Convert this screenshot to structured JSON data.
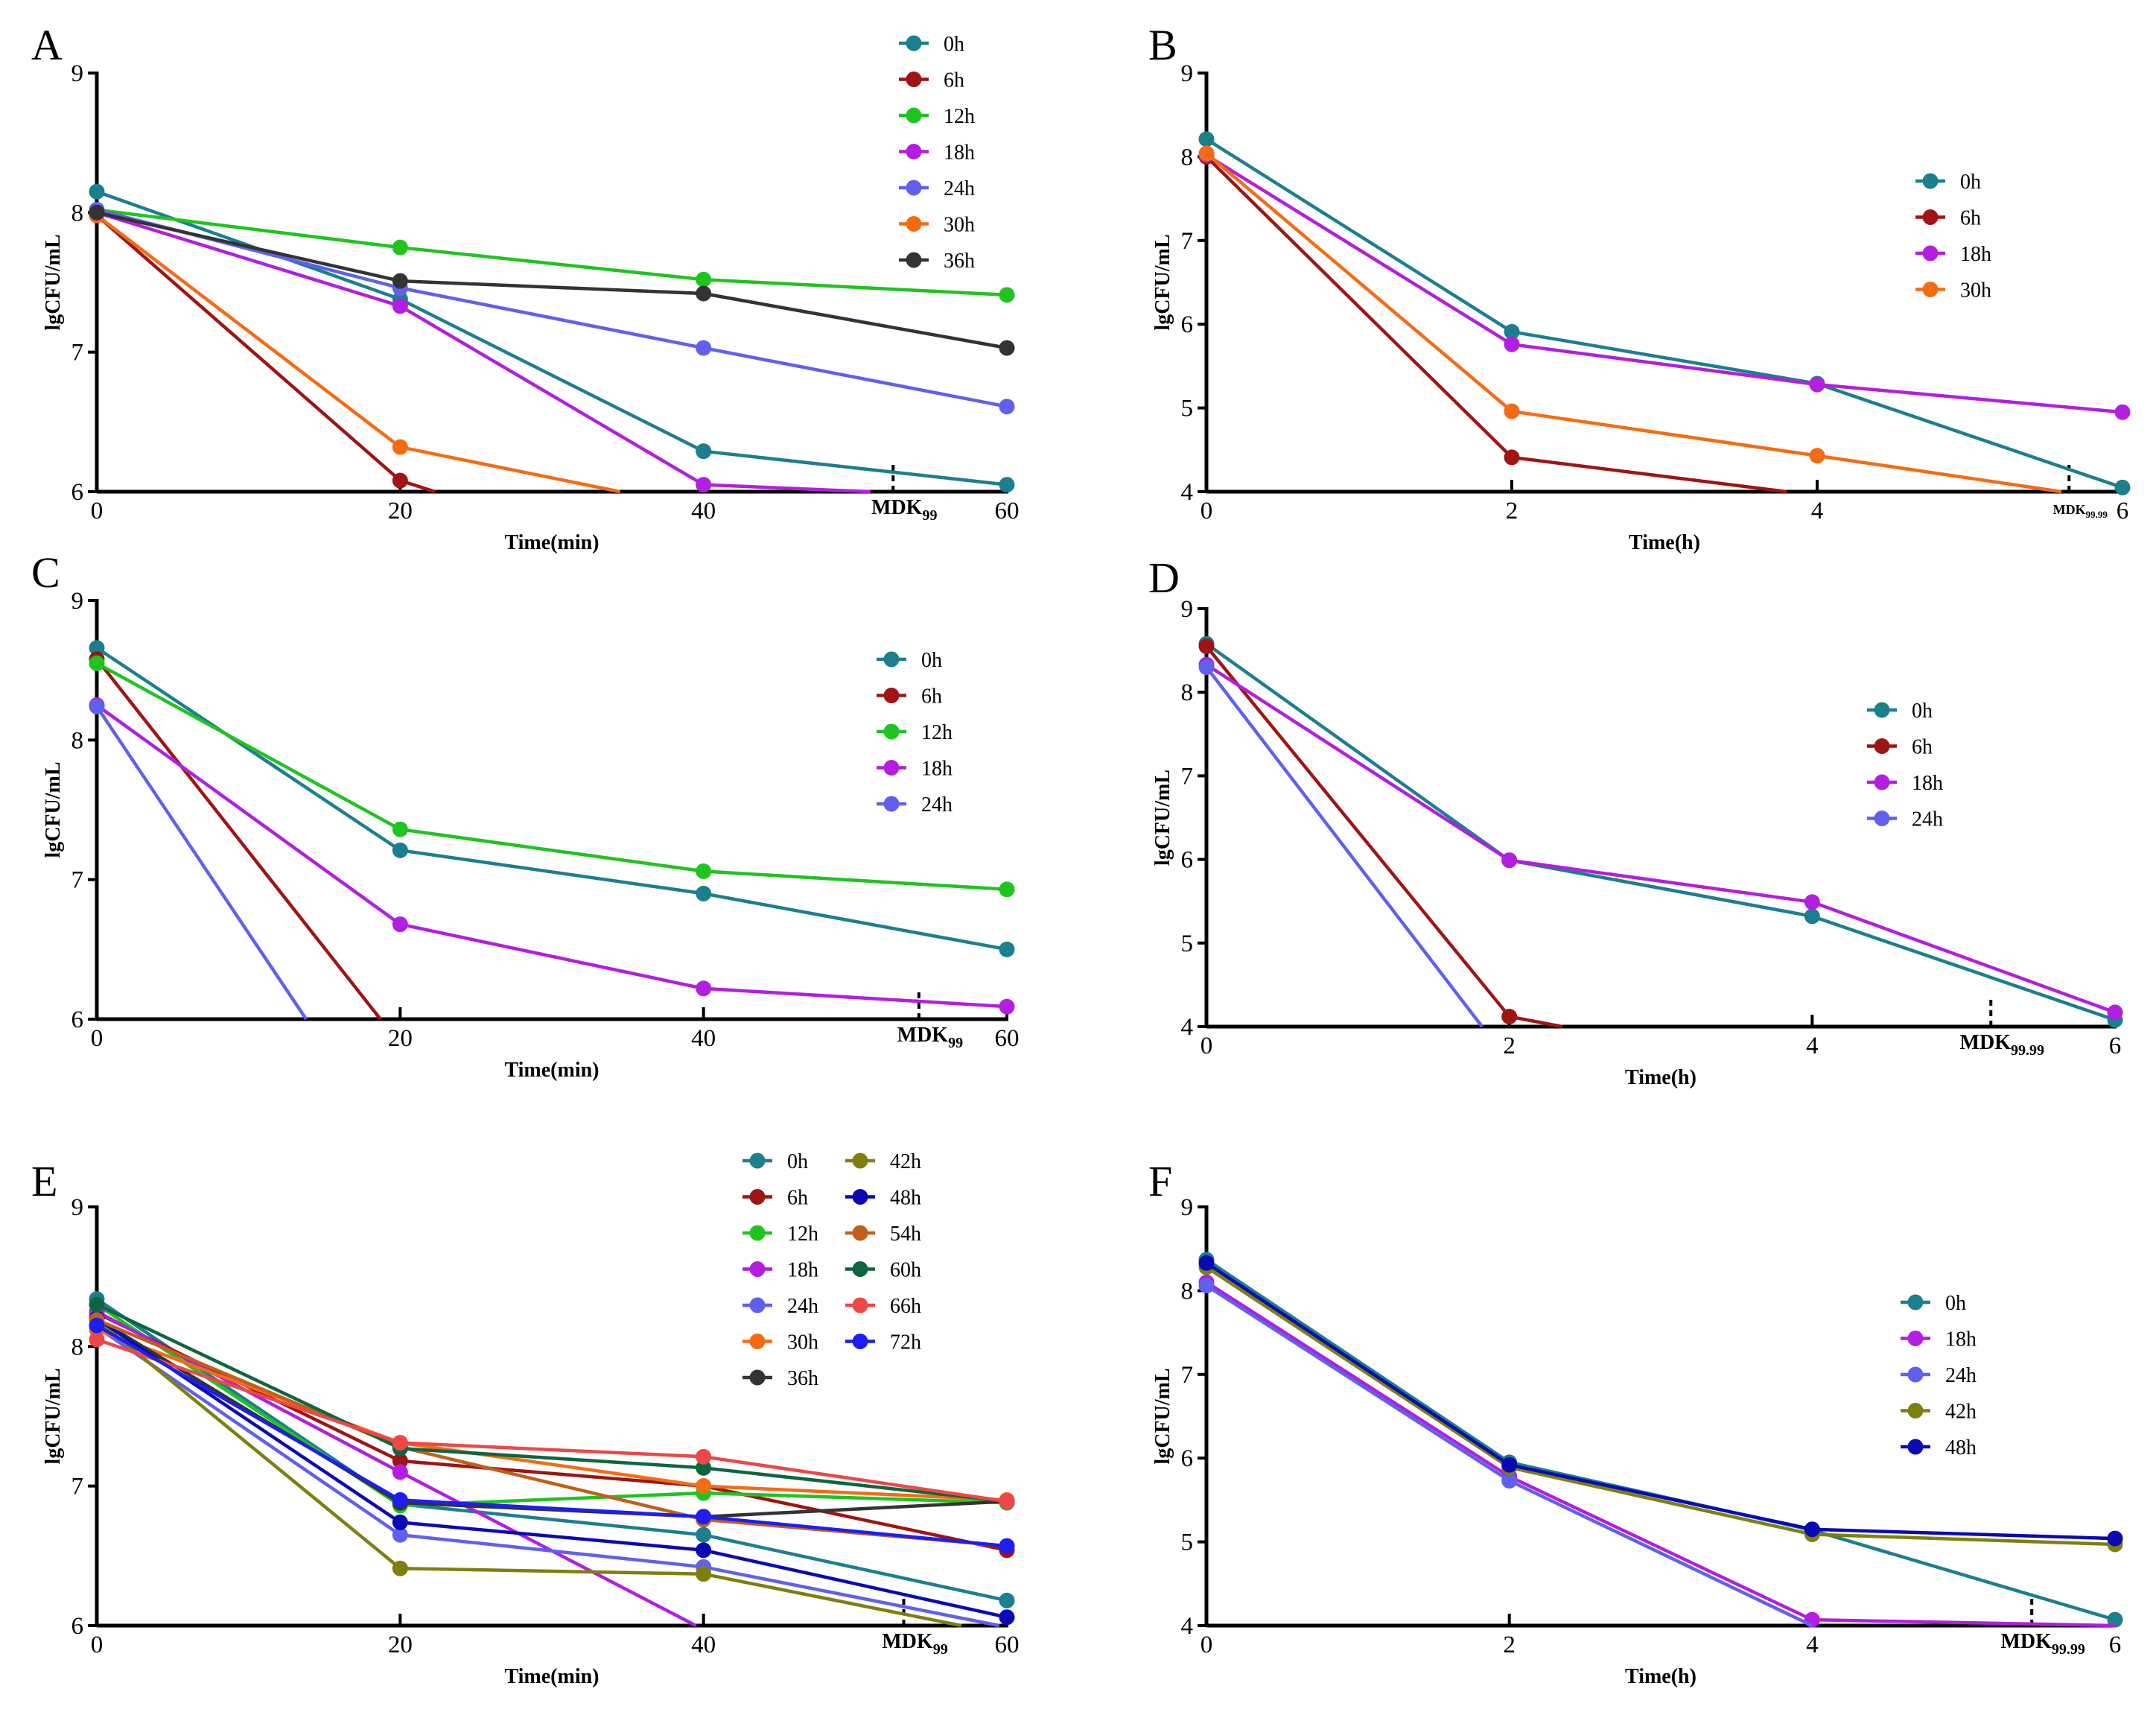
{
  "colors": {
    "0h": "#1b7f8e",
    "6h": "#a01414",
    "12h": "#1fc41f",
    "18h": "#b31ee0",
    "24h": "#6060ee",
    "30h": "#f56b14",
    "36h": "#333333",
    "42h": "#7f7f10",
    "48h": "#0a0ab5",
    "54h": "#c0601a",
    "60h": "#0e6640",
    "66h": "#ee4747",
    "72h": "#1e1ef0"
  },
  "chart_data": [
    {
      "panel": "A",
      "type": "line",
      "xlabel": "Time(min)",
      "ylabel": "lgCFU/mL",
      "xlim": [
        0,
        60
      ],
      "ylim": [
        6,
        9
      ],
      "xticks": [
        "0",
        "20",
        "40",
        "60"
      ],
      "yticks": [
        "6",
        "7",
        "8",
        "9"
      ],
      "mdk": {
        "label": "MDK",
        "sub": "99",
        "x": 52.5
      },
      "legend_cols": 1,
      "series": [
        {
          "name": "0h",
          "x": [
            0,
            20,
            40,
            60
          ],
          "y": [
            8.15,
            7.38,
            6.29,
            6.05
          ]
        },
        {
          "name": "6h",
          "x": [
            0,
            20,
            22.3
          ],
          "y": [
            7.98,
            6.08,
            6.0
          ]
        },
        {
          "name": "12h",
          "x": [
            0,
            20,
            40,
            60
          ],
          "y": [
            8.02,
            7.75,
            7.52,
            7.41
          ]
        },
        {
          "name": "18h",
          "x": [
            0,
            20,
            40,
            51
          ],
          "y": [
            8.0,
            7.33,
            6.05,
            6.0
          ]
        },
        {
          "name": "24h",
          "x": [
            0,
            20,
            40,
            60
          ],
          "y": [
            8.02,
            7.46,
            7.03,
            6.61
          ]
        },
        {
          "name": "30h",
          "x": [
            0,
            20,
            34.5
          ],
          "y": [
            7.98,
            6.32,
            6.0
          ]
        },
        {
          "name": "36h",
          "x": [
            0,
            20,
            40,
            60
          ],
          "y": [
            8.0,
            7.51,
            7.42,
            7.03
          ]
        }
      ],
      "markers_skip_last": {
        "6h": true,
        "18h": true,
        "30h": true
      }
    },
    {
      "panel": "B",
      "type": "line",
      "xlabel": "Time(h)",
      "ylabel": "lgCFU/mL",
      "xlim": [
        0,
        6
      ],
      "ylim": [
        4,
        9
      ],
      "xticks": [
        "0",
        "2",
        "4",
        "6"
      ],
      "yticks": [
        "4",
        "5",
        "6",
        "7",
        "8",
        "9"
      ],
      "mdk": {
        "label": "MDK",
        "sub": "99.99",
        "x": 5.65
      },
      "legend_cols": 1,
      "series": [
        {
          "name": "0h",
          "x": [
            0,
            2,
            4,
            6
          ],
          "y": [
            8.21,
            5.91,
            5.29,
            4.05
          ]
        },
        {
          "name": "6h",
          "x": [
            0,
            2,
            3.8
          ],
          "y": [
            8.0,
            4.41,
            4.0
          ]
        },
        {
          "name": "18h",
          "x": [
            0,
            2,
            4,
            6
          ],
          "y": [
            8.02,
            5.76,
            5.28,
            4.95
          ]
        },
        {
          "name": "30h",
          "x": [
            0,
            2,
            4,
            5.6
          ],
          "y": [
            8.04,
            4.96,
            4.43,
            4.0
          ]
        }
      ],
      "markers_skip_last": {
        "6h": true,
        "30h": true
      }
    },
    {
      "panel": "C",
      "type": "line",
      "xlabel": "Time(min)",
      "ylabel": "lgCFU/mL",
      "xlim": [
        0,
        60
      ],
      "ylim": [
        6,
        9
      ],
      "xticks": [
        "0",
        "20",
        "40",
        "60"
      ],
      "yticks": [
        "6",
        "7",
        "8",
        "9"
      ],
      "mdk": {
        "label": "MDK",
        "sub": "99",
        "x": 54.2
      },
      "legend_cols": 1,
      "series": [
        {
          "name": "0h",
          "x": [
            0,
            20,
            40,
            60
          ],
          "y": [
            8.66,
            7.21,
            6.9,
            6.5
          ]
        },
        {
          "name": "6h",
          "x": [
            0,
            18.7
          ],
          "y": [
            8.58,
            6.0
          ]
        },
        {
          "name": "12h",
          "x": [
            0,
            20,
            40,
            60
          ],
          "y": [
            8.55,
            7.36,
            7.06,
            6.93
          ]
        },
        {
          "name": "18h",
          "x": [
            0,
            20,
            40,
            60
          ],
          "y": [
            8.25,
            6.68,
            6.22,
            6.09
          ]
        },
        {
          "name": "24h",
          "x": [
            0,
            13.8
          ],
          "y": [
            8.24,
            6.0
          ]
        }
      ],
      "markers_skip_last": {
        "6h": true,
        "24h": true
      }
    },
    {
      "panel": "D",
      "type": "line",
      "xlabel": "Time(h)",
      "ylabel": "lgCFU/mL",
      "xlim": [
        0,
        6
      ],
      "ylim": [
        4,
        9
      ],
      "xticks": [
        "0",
        "2",
        "4",
        "6"
      ],
      "yticks": [
        "4",
        "5",
        "6",
        "7",
        "8",
        "9"
      ],
      "mdk": {
        "label": "MDK",
        "sub": "99.99",
        "x": 5.18
      },
      "legend_cols": 1,
      "series": [
        {
          "name": "0h",
          "x": [
            0,
            2,
            4,
            6
          ],
          "y": [
            8.58,
            5.99,
            5.32,
            4.08
          ]
        },
        {
          "name": "6h",
          "x": [
            0,
            2,
            2.35
          ],
          "y": [
            8.55,
            4.12,
            4.0
          ]
        },
        {
          "name": "18h",
          "x": [
            0,
            2,
            4,
            6
          ],
          "y": [
            8.33,
            5.99,
            5.49,
            4.17
          ]
        },
        {
          "name": "24h",
          "x": [
            0,
            1.82
          ],
          "y": [
            8.3,
            4.0
          ]
        }
      ],
      "markers_skip_last": {
        "6h": true,
        "24h": true
      }
    },
    {
      "panel": "E",
      "type": "line",
      "xlabel": "Time(min)",
      "ylabel": "lgCFU/mL",
      "xlim": [
        0,
        60
      ],
      "ylim": [
        6,
        9
      ],
      "xticks": [
        "0",
        "20",
        "40",
        "60"
      ],
      "yticks": [
        "6",
        "7",
        "8",
        "9"
      ],
      "mdk": {
        "label": "MDK",
        "sub": "99",
        "x": 53.2
      },
      "legend_cols": 2,
      "series": [
        {
          "name": "0h",
          "x": [
            0,
            20,
            40,
            60
          ],
          "y": [
            8.34,
            6.87,
            6.65,
            6.18
          ]
        },
        {
          "name": "6h",
          "x": [
            0,
            20,
            40,
            60
          ],
          "y": [
            8.24,
            7.18,
            7.0,
            6.54
          ]
        },
        {
          "name": "12h",
          "x": [
            0,
            20,
            40,
            60
          ],
          "y": [
            8.3,
            6.86,
            6.95,
            6.88
          ]
        },
        {
          "name": "18h",
          "x": [
            0,
            20,
            39.5
          ],
          "y": [
            8.25,
            7.1,
            6.0
          ]
        },
        {
          "name": "24h",
          "x": [
            0,
            20,
            40,
            59.5
          ],
          "y": [
            8.14,
            6.65,
            6.42,
            6.0
          ]
        },
        {
          "name": "30h",
          "x": [
            0,
            20,
            40,
            60
          ],
          "y": [
            8.12,
            7.31,
            7.0,
            6.9
          ]
        },
        {
          "name": "36h",
          "x": [
            0,
            20,
            40,
            60
          ],
          "y": [
            8.2,
            6.88,
            6.78,
            6.89
          ]
        },
        {
          "name": "42h",
          "x": [
            0,
            20,
            40,
            57
          ],
          "y": [
            8.19,
            6.41,
            6.37,
            6.0
          ]
        },
        {
          "name": "48h",
          "x": [
            0,
            20,
            40,
            60
          ],
          "y": [
            8.2,
            6.74,
            6.54,
            6.06
          ]
        },
        {
          "name": "54h",
          "x": [
            0,
            20,
            40,
            60
          ],
          "y": [
            8.19,
            7.28,
            6.76,
            6.57
          ]
        },
        {
          "name": "60h",
          "x": [
            0,
            20,
            40,
            60
          ],
          "y": [
            8.3,
            7.27,
            7.13,
            6.89
          ]
        },
        {
          "name": "66h",
          "x": [
            0,
            20,
            40,
            60
          ],
          "y": [
            8.05,
            7.31,
            7.21,
            6.89
          ]
        },
        {
          "name": "72h",
          "x": [
            0,
            20,
            40,
            60
          ],
          "y": [
            8.15,
            6.9,
            6.78,
            6.57
          ]
        }
      ],
      "markers_skip_last": {
        "18h": true,
        "24h": true,
        "42h": true
      }
    },
    {
      "panel": "F",
      "type": "line",
      "xlabel": "Time(h)",
      "ylabel": "lgCFU/mL",
      "xlim": [
        0,
        6
      ],
      "ylim": [
        4,
        9
      ],
      "xticks": [
        "0",
        "2",
        "4",
        "6"
      ],
      "yticks": [
        "4",
        "5",
        "6",
        "7",
        "8",
        "9"
      ],
      "mdk": {
        "label": "MDK",
        "sub": "99.99",
        "x": 5.45
      },
      "legend_cols": 1,
      "series": [
        {
          "name": "0h",
          "x": [
            0,
            2,
            4,
            6
          ],
          "y": [
            8.37,
            5.95,
            5.14,
            4.07
          ]
        },
        {
          "name": "18h",
          "x": [
            0,
            2,
            4,
            6
          ],
          "y": [
            8.1,
            5.78,
            4.07,
            4.0
          ]
        },
        {
          "name": "24h",
          "x": [
            0,
            2,
            4
          ],
          "y": [
            8.06,
            5.73,
            4.0
          ]
        },
        {
          "name": "42h",
          "x": [
            0,
            2,
            4,
            6
          ],
          "y": [
            8.28,
            5.89,
            5.09,
            4.97
          ]
        },
        {
          "name": "48h",
          "x": [
            0,
            2,
            4,
            6
          ],
          "y": [
            8.33,
            5.92,
            5.15,
            5.04
          ]
        }
      ],
      "markers_skip_last": {
        "18h": true,
        "24h": true
      }
    }
  ]
}
